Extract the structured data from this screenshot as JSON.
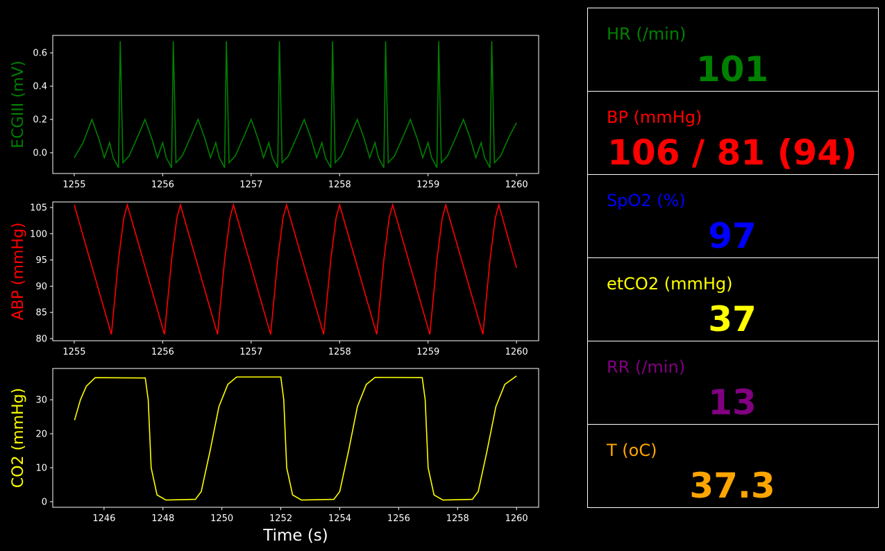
{
  "chart_data": [
    {
      "type": "line",
      "ylabel": "ECGIII (mV)",
      "color": "#008000",
      "x": [
        1255.0,
        1255.1,
        1255.2,
        1255.28,
        1255.34,
        1255.4,
        1255.44,
        1255.5,
        1255.52,
        1255.55,
        1255.62,
        1255.72,
        1255.8,
        1255.88,
        1255.94,
        1256.0,
        1256.04,
        1256.1,
        1256.12,
        1256.15,
        1256.22,
        1256.32,
        1256.4,
        1256.48,
        1256.54,
        1256.6,
        1256.64,
        1256.7,
        1256.72,
        1256.75,
        1256.82,
        1256.92,
        1257.0,
        1257.08,
        1257.14,
        1257.2,
        1257.24,
        1257.3,
        1257.32,
        1257.35,
        1257.42,
        1257.52,
        1257.6,
        1257.68,
        1257.74,
        1257.8,
        1257.84,
        1257.9,
        1257.92,
        1257.95,
        1258.02,
        1258.12,
        1258.2,
        1258.28,
        1258.34,
        1258.4,
        1258.44,
        1258.5,
        1258.52,
        1258.55,
        1258.62,
        1258.72,
        1258.8,
        1258.88,
        1258.94,
        1259.0,
        1259.04,
        1259.1,
        1259.12,
        1259.15,
        1259.22,
        1259.32,
        1259.4,
        1259.48,
        1259.54,
        1259.6,
        1259.64,
        1259.7,
        1259.72,
        1259.75,
        1259.82,
        1259.92,
        1260.0
      ],
      "values": [
        -0.03,
        0.06,
        0.2,
        0.08,
        -0.03,
        0.06,
        -0.03,
        -0.09,
        0.67,
        -0.06,
        -0.02,
        0.1,
        0.2,
        0.08,
        -0.03,
        0.06,
        -0.03,
        -0.09,
        0.67,
        -0.06,
        -0.02,
        0.1,
        0.2,
        0.08,
        -0.03,
        0.06,
        -0.03,
        -0.09,
        0.67,
        -0.06,
        -0.02,
        0.1,
        0.2,
        0.08,
        -0.03,
        0.06,
        -0.03,
        -0.09,
        0.67,
        -0.06,
        -0.02,
        0.1,
        0.2,
        0.08,
        -0.03,
        0.06,
        -0.03,
        -0.09,
        0.67,
        -0.06,
        -0.02,
        0.1,
        0.2,
        0.08,
        -0.03,
        0.06,
        -0.03,
        -0.09,
        0.67,
        -0.06,
        -0.02,
        0.1,
        0.2,
        0.08,
        -0.03,
        0.06,
        -0.03,
        -0.09,
        0.67,
        -0.06,
        -0.02,
        0.1,
        0.2,
        0.08,
        -0.03,
        0.06,
        -0.03,
        -0.09,
        0.67,
        -0.06,
        -0.02,
        0.1,
        0.18
      ],
      "xlim": [
        1254.757,
        1260.25
      ],
      "xticks": [
        1255,
        1256,
        1257,
        1258,
        1259,
        1260
      ],
      "ylim": [
        -0.125,
        0.705
      ],
      "yticks": [
        {
          "value": 0,
          "label": "0.0"
        },
        0.2,
        0.4,
        0.6
      ]
    },
    {
      "type": "line",
      "ylabel": "ABP (mmHg)",
      "color": "#ff0000",
      "x": [
        1255.0,
        1255.42,
        1255.5,
        1255.56,
        1255.6,
        1256.02,
        1256.1,
        1256.16,
        1256.2,
        1256.62,
        1256.7,
        1256.76,
        1256.8,
        1257.22,
        1257.3,
        1257.36,
        1257.4,
        1257.82,
        1257.9,
        1257.96,
        1258.0,
        1258.42,
        1258.5,
        1258.56,
        1258.6,
        1259.02,
        1259.1,
        1259.16,
        1259.2,
        1259.62,
        1259.7,
        1259.76,
        1259.8,
        1260.0
      ],
      "values": [
        105.5,
        80.8,
        95,
        103,
        105.5,
        80.8,
        95,
        103,
        105.5,
        80.8,
        95,
        103,
        105.5,
        80.8,
        95,
        103,
        105.5,
        80.8,
        95,
        103,
        105.5,
        80.8,
        95,
        103,
        105.5,
        80.8,
        95,
        103,
        105.5,
        80.8,
        95,
        103,
        105.5,
        93.5
      ],
      "xlim": [
        1254.757,
        1260.25
      ],
      "xticks": [
        1255,
        1256,
        1257,
        1258,
        1259,
        1260
      ],
      "ylim": [
        79.6,
        106.06
      ],
      "yticks": [
        80,
        85,
        90,
        95,
        100,
        105
      ]
    },
    {
      "type": "line",
      "ylabel": "CO2 (mmHg)",
      "xlabel": "Time (s)",
      "color": "#ffff00",
      "x": [
        1245.0,
        1245.2,
        1245.4,
        1245.7,
        1247.4,
        1247.5,
        1247.6,
        1247.8,
        1248.1,
        1249.1,
        1249.3,
        1249.6,
        1249.9,
        1250.2,
        1250.5,
        1252.0,
        1252.1,
        1252.2,
        1252.4,
        1252.7,
        1253.8,
        1254.0,
        1254.3,
        1254.6,
        1254.9,
        1255.2,
        1256.8,
        1256.9,
        1257.0,
        1257.2,
        1257.5,
        1258.5,
        1258.7,
        1259.0,
        1259.3,
        1259.6,
        1260.0
      ],
      "values": [
        24,
        30,
        34,
        36.5,
        36.4,
        30,
        10,
        2,
        0.5,
        0.7,
        3,
        15,
        28,
        34.5,
        36.7,
        36.7,
        30,
        10,
        2,
        0.5,
        0.7,
        3,
        15,
        28,
        34.5,
        36.6,
        36.5,
        30,
        10,
        2,
        0.5,
        0.7,
        3,
        15,
        28,
        34.5,
        37
      ],
      "xlim": [
        1244.26,
        1260.75
      ],
      "xticks": [
        1246,
        1248,
        1250,
        1252,
        1254,
        1256,
        1258,
        1260
      ],
      "ylim": [
        -1.63,
        39.2
      ],
      "yticks": [
        0,
        10,
        20,
        30
      ]
    }
  ],
  "vitals": [
    {
      "label": "HR (/min)",
      "value": 101,
      "color": "#008000"
    },
    {
      "label": "BP  (mmHg)",
      "value": "106 / 81 (94)",
      "color": "#ff0000"
    },
    {
      "label": "SpO2 (%)",
      "value": 97,
      "color": "#0000ff"
    },
    {
      "label": "etCO2 (mmHg)",
      "value": 37,
      "color": "#ffff00"
    },
    {
      "label": "RR (/min)",
      "value": 13,
      "color": "#800080"
    },
    {
      "label": "T (oC)",
      "value": 37.3,
      "color": "#ffa500"
    }
  ]
}
